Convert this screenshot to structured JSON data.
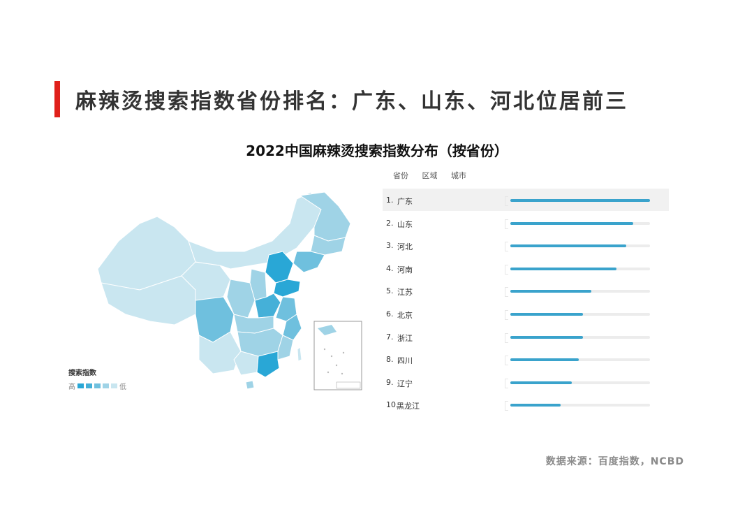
{
  "header": {
    "title": "麻辣烫搜索指数省份排名：广东、山东、河北位居前三",
    "accent_color": "#e0201b"
  },
  "tabs": [
    "省份",
    "区域",
    "城市"
  ],
  "map_legend": {
    "title": "搜索指数",
    "high_label": "高",
    "low_label": "低",
    "colors": [
      "#29a7d6",
      "#45b0d8",
      "#6fc0de",
      "#9fd3e6",
      "#c9e6f0"
    ]
  },
  "source": "数据来源：百度指数，NCBD",
  "chart_data": {
    "type": "bar",
    "title": "2022中国麻辣烫搜索指数分布（按省份）",
    "orientation": "horizontal",
    "categories": [
      "广东",
      "山东",
      "河北",
      "河南",
      "江苏",
      "北京",
      "浙江",
      "四川",
      "辽宁",
      "黑龙江"
    ],
    "ranks": [
      "1.",
      "2.",
      "3.",
      "4.",
      "5.",
      "6.",
      "7.",
      "8.",
      "9.",
      "10."
    ],
    "values": [
      100,
      88,
      83,
      76,
      58,
      52,
      52,
      49,
      44,
      36
    ],
    "xlim": [
      0,
      100
    ],
    "bar_color": "#3aa3cc",
    "highlighted_index": 0
  }
}
